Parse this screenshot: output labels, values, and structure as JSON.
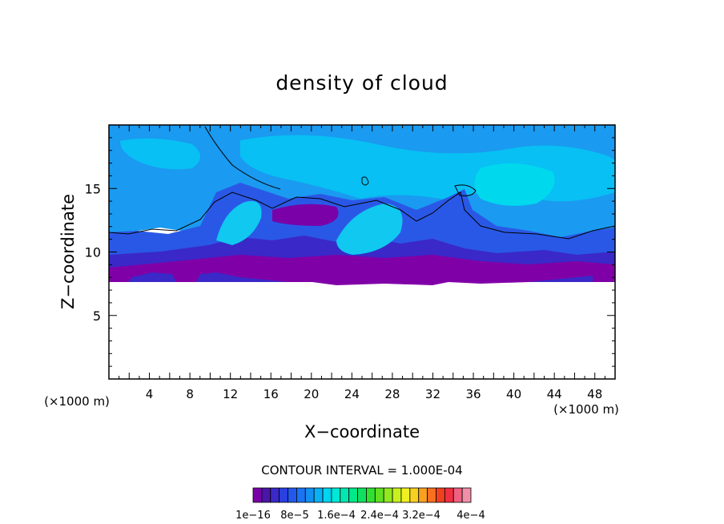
{
  "chart_data": {
    "type": "heatmap",
    "title": "density of cloud",
    "xlabel": "X−coordinate",
    "ylabel": "Z−coordinate",
    "x_unit_label": "(×1000 m)",
    "y_unit_label": "(×1000 m)",
    "xlim": [
      0,
      50
    ],
    "ylim": [
      0,
      20
    ],
    "x_ticks": [
      {
        "value": 4,
        "label": "4"
      },
      {
        "value": 8,
        "label": "8"
      },
      {
        "value": 12,
        "label": "12"
      },
      {
        "value": 16,
        "label": "16"
      },
      {
        "value": 20,
        "label": "20"
      },
      {
        "value": 24,
        "label": "24"
      },
      {
        "value": 28,
        "label": "28"
      },
      {
        "value": 32,
        "label": "32"
      },
      {
        "value": 36,
        "label": "36"
      },
      {
        "value": 40,
        "label": "40"
      },
      {
        "value": 44,
        "label": "44"
      },
      {
        "value": 48,
        "label": "48"
      }
    ],
    "y_ticks": [
      {
        "value": 5,
        "label": "5"
      },
      {
        "value": 10,
        "label": "10"
      },
      {
        "value": 15,
        "label": "15"
      }
    ],
    "contour_interval_text": "CONTOUR INTERVAL = 1.000E-04",
    "colorbar": {
      "colors": [
        "#7a00a8",
        "#4a16a6",
        "#3a28c8",
        "#2a40e0",
        "#2258ee",
        "#1a74f2",
        "#1290f2",
        "#08b0f4",
        "#00d4f0",
        "#00e8d8",
        "#00e8b0",
        "#00e888",
        "#10e060",
        "#30e030",
        "#60e020",
        "#90e820",
        "#c8f020",
        "#f0f020",
        "#f8d020",
        "#f8a020",
        "#f87020",
        "#f04020",
        "#f03040",
        "#f06080",
        "#f090a8"
      ],
      "tick_labels": [
        "1e−16",
        "8e−5",
        "1.6e−4",
        "2.4e−4",
        "3.2e−4",
        "4e−4"
      ]
    },
    "field_description_colors": {
      "upper_layer": "#1a9af0",
      "light_patches": "#08c0f4",
      "mid_layer": "#2a58e6",
      "dense_base": "#8000a8",
      "no_cloud": "#ffffff"
    },
    "cloud_base_km": 7.6,
    "cloud_top_km": 20
  }
}
